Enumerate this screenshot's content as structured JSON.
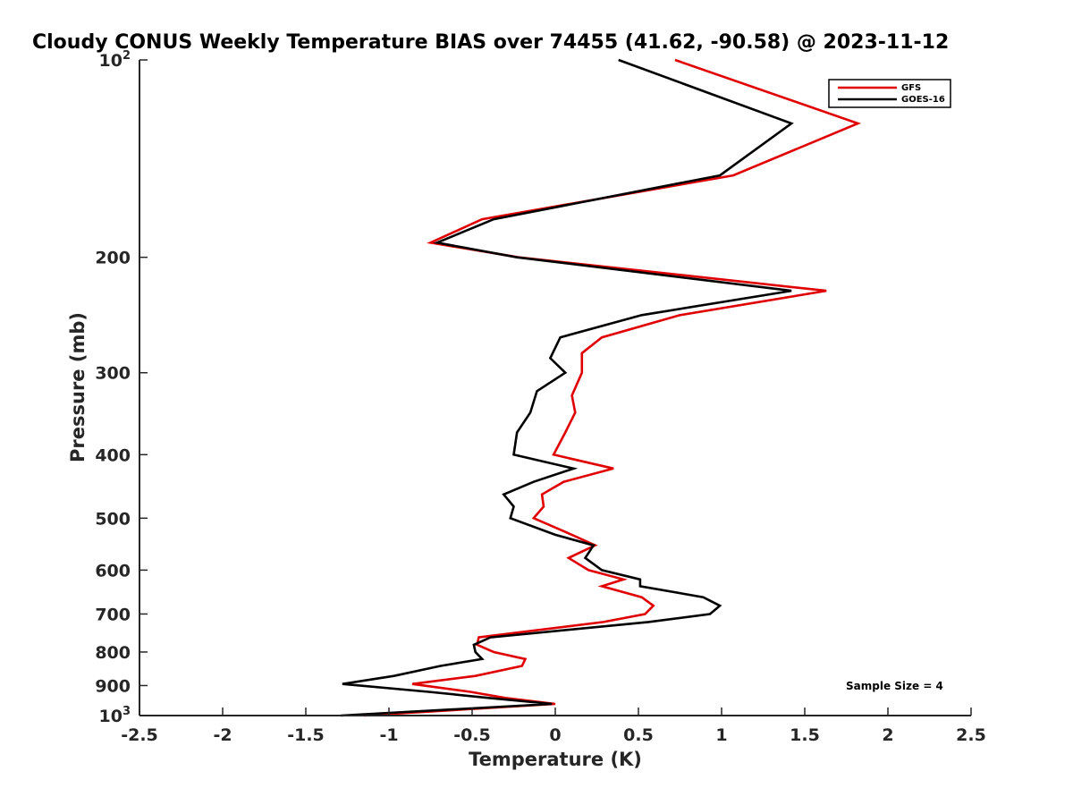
{
  "chart_data": {
    "type": "line",
    "title": "Cloudy CONUS Weekly Temperature BIAS over 74455 (41.62, -90.58) @ 2023-11-12",
    "xlabel": "Temperature (K)",
    "ylabel": "Pressure (mb)",
    "xlim": [
      -2.5,
      2.5
    ],
    "ylim": [
      100,
      1000
    ],
    "y_scale": "log",
    "y_reversed": true,
    "grid": false,
    "legend_position": "top-right",
    "x_ticks": [
      {
        "value": -2.5,
        "label": "-2.5"
      },
      {
        "value": -2,
        "label": "-2"
      },
      {
        "value": -1.5,
        "label": "-1.5"
      },
      {
        "value": -1,
        "label": "-1"
      },
      {
        "value": -0.5,
        "label": "-0.5"
      },
      {
        "value": 0,
        "label": "0"
      },
      {
        "value": 0.5,
        "label": "0.5"
      },
      {
        "value": 1,
        "label": "1"
      },
      {
        "value": 1.5,
        "label": "1.5"
      },
      {
        "value": 2,
        "label": "2"
      },
      {
        "value": 2.5,
        "label": "2.5"
      }
    ],
    "y_ticks": [
      {
        "value": 100,
        "base": "10",
        "exp": "2"
      },
      {
        "value": 200,
        "base": "200",
        "exp": ""
      },
      {
        "value": 300,
        "base": "300",
        "exp": ""
      },
      {
        "value": 400,
        "base": "400",
        "exp": ""
      },
      {
        "value": 500,
        "base": "500",
        "exp": ""
      },
      {
        "value": 600,
        "base": "600",
        "exp": ""
      },
      {
        "value": 700,
        "base": "700",
        "exp": ""
      },
      {
        "value": 800,
        "base": "800",
        "exp": ""
      },
      {
        "value": 900,
        "base": "900",
        "exp": ""
      },
      {
        "value": 1000,
        "base": "10",
        "exp": "3"
      }
    ],
    "series": [
      {
        "name": "GFS",
        "color": "#e00000",
        "points": [
          [
            0.72,
            100
          ],
          [
            1.82,
            125
          ],
          [
            1.07,
            150
          ],
          [
            -0.44,
            175
          ],
          [
            -0.75,
            190
          ],
          [
            -0.22,
            200
          ],
          [
            1.63,
            225
          ],
          [
            0.75,
            245
          ],
          [
            0.28,
            265
          ],
          [
            0.16,
            280
          ],
          [
            0.16,
            300
          ],
          [
            0.1,
            325
          ],
          [
            0.12,
            345
          ],
          [
            0.06,
            370
          ],
          [
            -0.01,
            400
          ],
          [
            0.35,
            420
          ],
          [
            0.05,
            440
          ],
          [
            -0.08,
            460
          ],
          [
            -0.07,
            480
          ],
          [
            -0.13,
            500
          ],
          [
            0.1,
            530
          ],
          [
            0.24,
            550
          ],
          [
            0.08,
            575
          ],
          [
            0.2,
            600
          ],
          [
            0.41,
            620
          ],
          [
            0.28,
            635
          ],
          [
            0.52,
            660
          ],
          [
            0.59,
            680
          ],
          [
            0.54,
            700
          ],
          [
            0.29,
            720
          ],
          [
            -0.46,
            760
          ],
          [
            -0.47,
            780
          ],
          [
            -0.37,
            800
          ],
          [
            -0.18,
            820
          ],
          [
            -0.2,
            840
          ],
          [
            -0.48,
            870
          ],
          [
            -0.86,
            895
          ],
          [
            -0.51,
            920
          ],
          [
            -0.3,
            940
          ],
          [
            0.0,
            960
          ],
          [
            -1.15,
            1000
          ]
        ]
      },
      {
        "name": "GOES-16",
        "color": "#000000",
        "points": [
          [
            0.38,
            100
          ],
          [
            1.42,
            125
          ],
          [
            0.99,
            150
          ],
          [
            -0.37,
            175
          ],
          [
            -0.71,
            190
          ],
          [
            -0.23,
            200
          ],
          [
            1.42,
            225
          ],
          [
            0.52,
            245
          ],
          [
            0.03,
            265
          ],
          [
            -0.03,
            285
          ],
          [
            0.06,
            300
          ],
          [
            -0.11,
            320
          ],
          [
            -0.15,
            345
          ],
          [
            -0.23,
            370
          ],
          [
            -0.25,
            400
          ],
          [
            0.11,
            420
          ],
          [
            -0.13,
            440
          ],
          [
            -0.31,
            460
          ],
          [
            -0.25,
            480
          ],
          [
            -0.27,
            500
          ],
          [
            0.0,
            530
          ],
          [
            0.23,
            550
          ],
          [
            0.18,
            575
          ],
          [
            0.28,
            600
          ],
          [
            0.51,
            620
          ],
          [
            0.51,
            635
          ],
          [
            0.89,
            660
          ],
          [
            0.99,
            680
          ],
          [
            0.93,
            700
          ],
          [
            0.56,
            720
          ],
          [
            -0.39,
            760
          ],
          [
            -0.49,
            780
          ],
          [
            -0.48,
            800
          ],
          [
            -0.44,
            820
          ],
          [
            -0.69,
            840
          ],
          [
            -0.97,
            870
          ],
          [
            -1.28,
            895
          ],
          [
            -0.76,
            920
          ],
          [
            -0.4,
            940
          ],
          [
            -0.02,
            960
          ],
          [
            -1.29,
            1000
          ]
        ]
      }
    ],
    "legend": [
      {
        "name": "GFS",
        "color": "#e00000"
      },
      {
        "name": "GOES-16",
        "color": "#000000"
      }
    ],
    "annotations": [
      {
        "text": "Sample Size = 4"
      }
    ]
  }
}
